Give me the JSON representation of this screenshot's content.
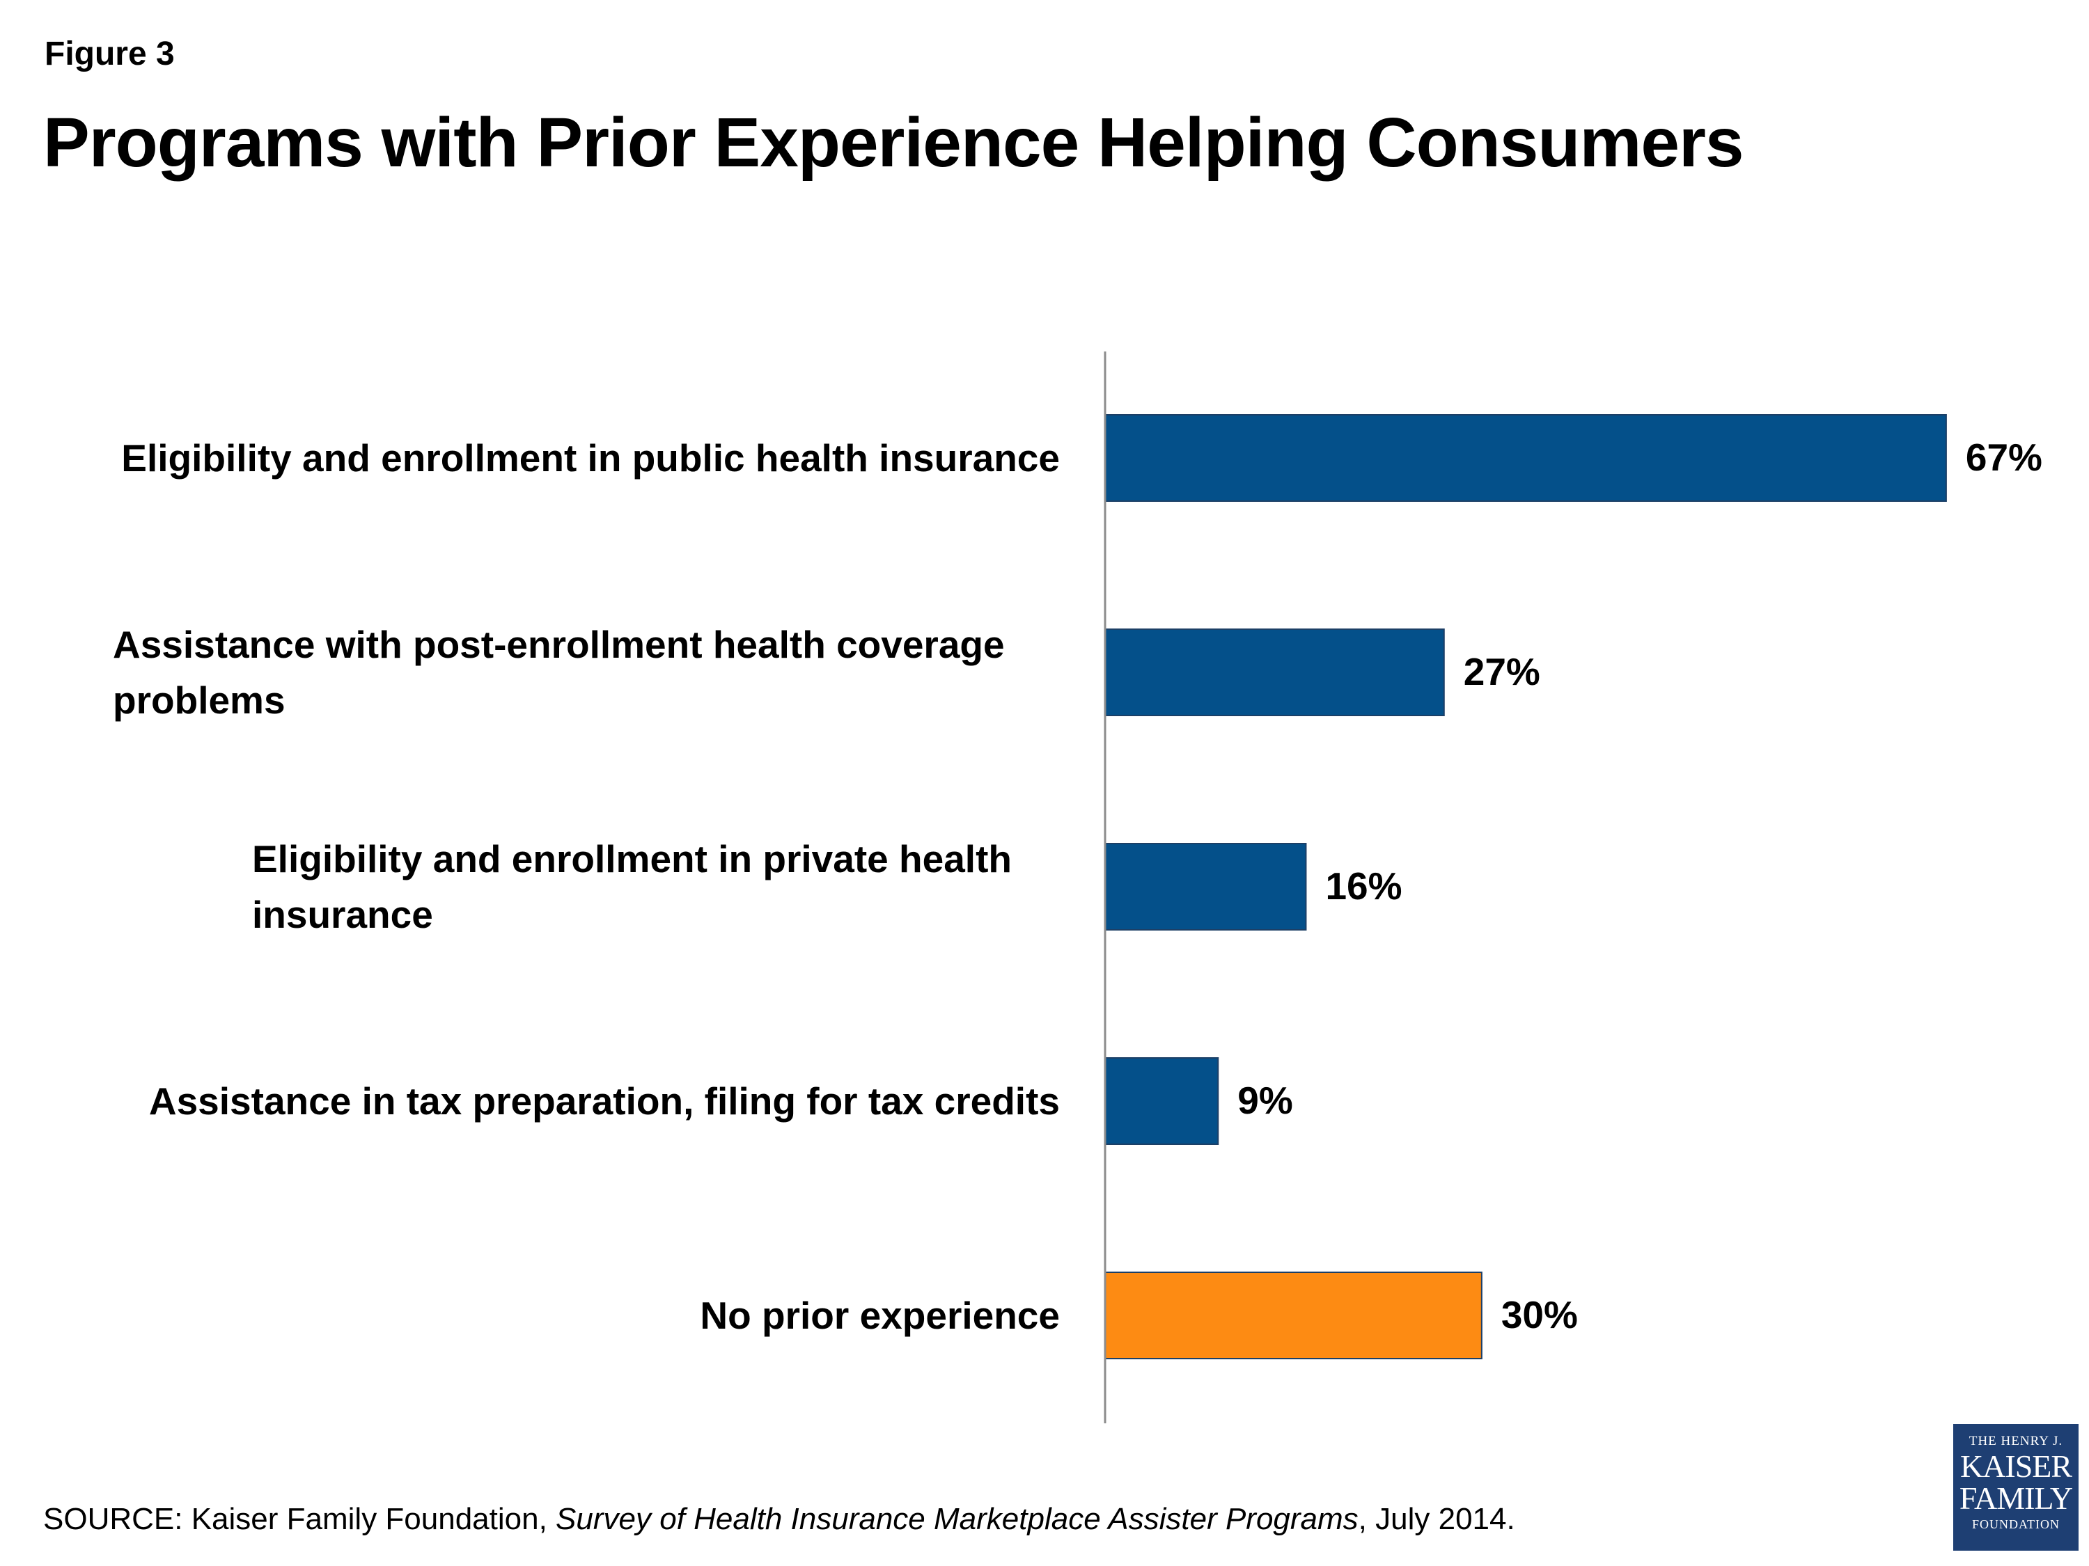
{
  "figure_label": "Figure 3",
  "title": "Programs with Prior Experience Helping Consumers",
  "chart_data": {
    "type": "bar",
    "orientation": "horizontal",
    "categories": [
      "Eligibility and enrollment in public health insurance",
      "Assistance with post-enrollment health coverage problems",
      "Eligibility and enrollment in private health insurance",
      "Assistance in tax preparation, filing for tax credits",
      "No prior experience"
    ],
    "values": [
      67,
      27,
      16,
      9,
      30
    ],
    "data_labels": [
      "67%",
      "27%",
      "16%",
      "9%",
      "30%"
    ],
    "bar_colors": [
      "#04508a",
      "#04508a",
      "#04508a",
      "#04508a",
      "#fd8b13"
    ],
    "xlim": [
      0,
      71
    ],
    "grid": false,
    "legend": "none"
  },
  "source": {
    "prefix": "SOURCE: Kaiser Family Foundation, ",
    "italic": "Survey of Health Insurance Marketplace Assister Programs",
    "suffix": ", July 2014."
  },
  "logo": {
    "line1": "THE HENRY J.",
    "line2": "KAISER",
    "line3": "FAMILY",
    "line4": "FOUNDATION"
  }
}
